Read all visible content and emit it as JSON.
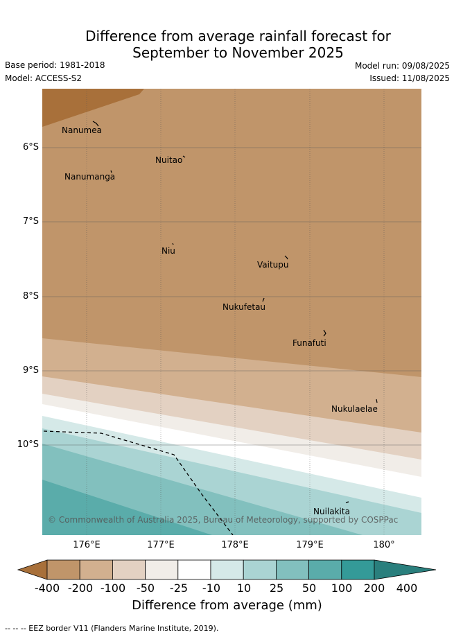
{
  "title_line1": "Difference from average rainfall forecast for",
  "title_line2": "September to November 2025",
  "base_period": "Base period: 1981-2018",
  "model": "Model: ACCESS-S2",
  "model_run": "Model run: 09/08/2025",
  "issued": "Issued: 11/08/2025",
  "latitude_labels": [
    "6°S",
    "7°S",
    "8°S",
    "9°S",
    "10°S"
  ],
  "longitude_labels": [
    "176°E",
    "177°E",
    "178°E",
    "179°E",
    "180°"
  ],
  "places": [
    "Nanumea",
    "Nuitao",
    "Nanumanga",
    "Niu",
    "Vaitupu",
    "Nukufetau",
    "Funafuti",
    "Nukulaelae",
    "Nuilakita"
  ],
  "credit": "© Commonwealth of Australia 2025, Bureau of Meteorology, supported by COSPPac",
  "colorbar": {
    "labels": [
      "-400",
      "-200",
      "-100",
      "-50",
      "-25",
      "-10",
      "10",
      "25",
      "50",
      "100",
      "200",
      "400"
    ],
    "colors": [
      "#a8703a",
      "#c0956a",
      "#d2b08f",
      "#e3d1c2",
      "#f1ede8",
      "#ffffff",
      "#d5e9e8",
      "#aad4d3",
      "#82c0be",
      "#5aacaa",
      "#349a98",
      "#2a7f7d"
    ],
    "title": "Difference from average (mm)"
  },
  "footer": "-- -- -- EEZ border V11 (Flanders Marine Institute, 2019)."
}
